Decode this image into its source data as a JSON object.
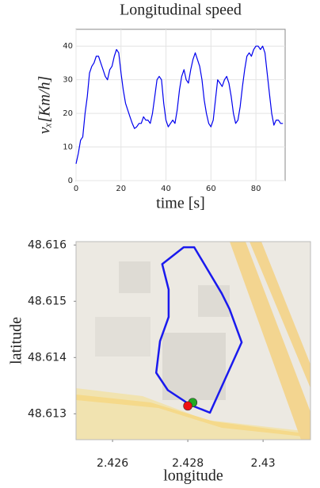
{
  "chart_data": [
    {
      "type": "line",
      "title": "Longitudinal speed",
      "x_label": "time [s]",
      "y_label": "vₓ[Km/h]",
      "x": [
        0,
        1,
        2,
        3,
        4,
        5,
        6,
        7,
        8,
        9,
        10,
        11,
        12,
        13,
        14,
        15,
        16,
        17,
        18,
        19,
        20,
        21,
        22,
        23,
        24,
        25,
        26,
        27,
        28,
        29,
        30,
        31,
        32,
        33,
        34,
        35,
        36,
        37,
        38,
        39,
        40,
        41,
        42,
        43,
        44,
        45,
        46,
        47,
        48,
        49,
        50,
        51,
        52,
        53,
        54,
        55,
        56,
        57,
        58,
        59,
        60,
        61,
        62,
        63,
        64,
        65,
        66,
        67,
        68,
        69,
        70,
        71,
        72,
        73,
        74,
        75,
        76,
        77,
        78,
        79,
        80,
        81,
        82,
        83,
        84,
        85,
        86,
        87,
        88,
        89,
        90,
        91,
        92
      ],
      "series": [
        {
          "color": "#0000ee",
          "values": [
            5,
            8,
            12,
            13,
            20,
            25,
            32,
            34,
            35,
            37,
            37,
            35,
            33,
            31,
            30,
            33,
            34,
            37,
            39,
            38,
            32,
            27,
            23,
            21,
            19,
            17,
            15.5,
            16,
            17,
            17,
            19,
            18,
            18,
            17,
            20,
            25,
            30,
            31,
            30,
            23,
            18,
            16,
            17,
            18,
            17,
            21,
            27,
            31,
            33,
            30,
            29,
            33,
            36,
            38,
            36,
            34,
            30,
            24,
            20,
            17,
            16,
            18,
            24,
            30,
            29,
            28,
            30,
            31,
            29,
            25,
            20,
            17,
            18,
            22,
            28,
            33,
            37,
            38,
            37,
            39,
            40,
            40,
            39,
            40,
            38,
            32,
            26,
            20,
            16.5,
            18,
            18,
            17,
            17
          ]
        }
      ],
      "xlim": [
        0,
        93
      ],
      "ylim": [
        0,
        45
      ],
      "xticks": [
        0,
        20,
        40,
        60,
        80
      ],
      "yticks": [
        0,
        10,
        20,
        30,
        40
      ]
    },
    {
      "type": "map",
      "x_label": "longitude",
      "y_label": "latitude",
      "series": [
        {
          "color": "#1a1aee",
          "x": [
            2.42806,
            2.42859,
            2.42943,
            2.42911,
            2.4289,
            2.42817,
            2.42789,
            2.42732,
            2.42749,
            2.42749,
            2.42726,
            2.42716,
            2.42747,
            2.42806
          ],
          "values": [
            48.61316,
            48.61302,
            48.61427,
            48.61486,
            48.61514,
            48.61596,
            48.61596,
            48.61566,
            48.61521,
            48.61472,
            48.61429,
            48.61373,
            48.61342,
            48.61316
          ]
        },
        {
          "color": "#22aa22",
          "marker": true,
          "x": [
            2.42813
          ],
          "values": [
            48.6132
          ]
        },
        {
          "color": "#ee1111",
          "marker": true,
          "x": [
            2.428
          ],
          "values": [
            48.61314
          ]
        }
      ],
      "xlim": [
        2.42503,
        2.43126
      ],
      "ylim": [
        48.61254,
        48.61606
      ],
      "xticks": [
        2.426,
        2.428,
        2.43
      ],
      "yticks": [
        48.616,
        48.615,
        48.614,
        48.613
      ]
    }
  ]
}
